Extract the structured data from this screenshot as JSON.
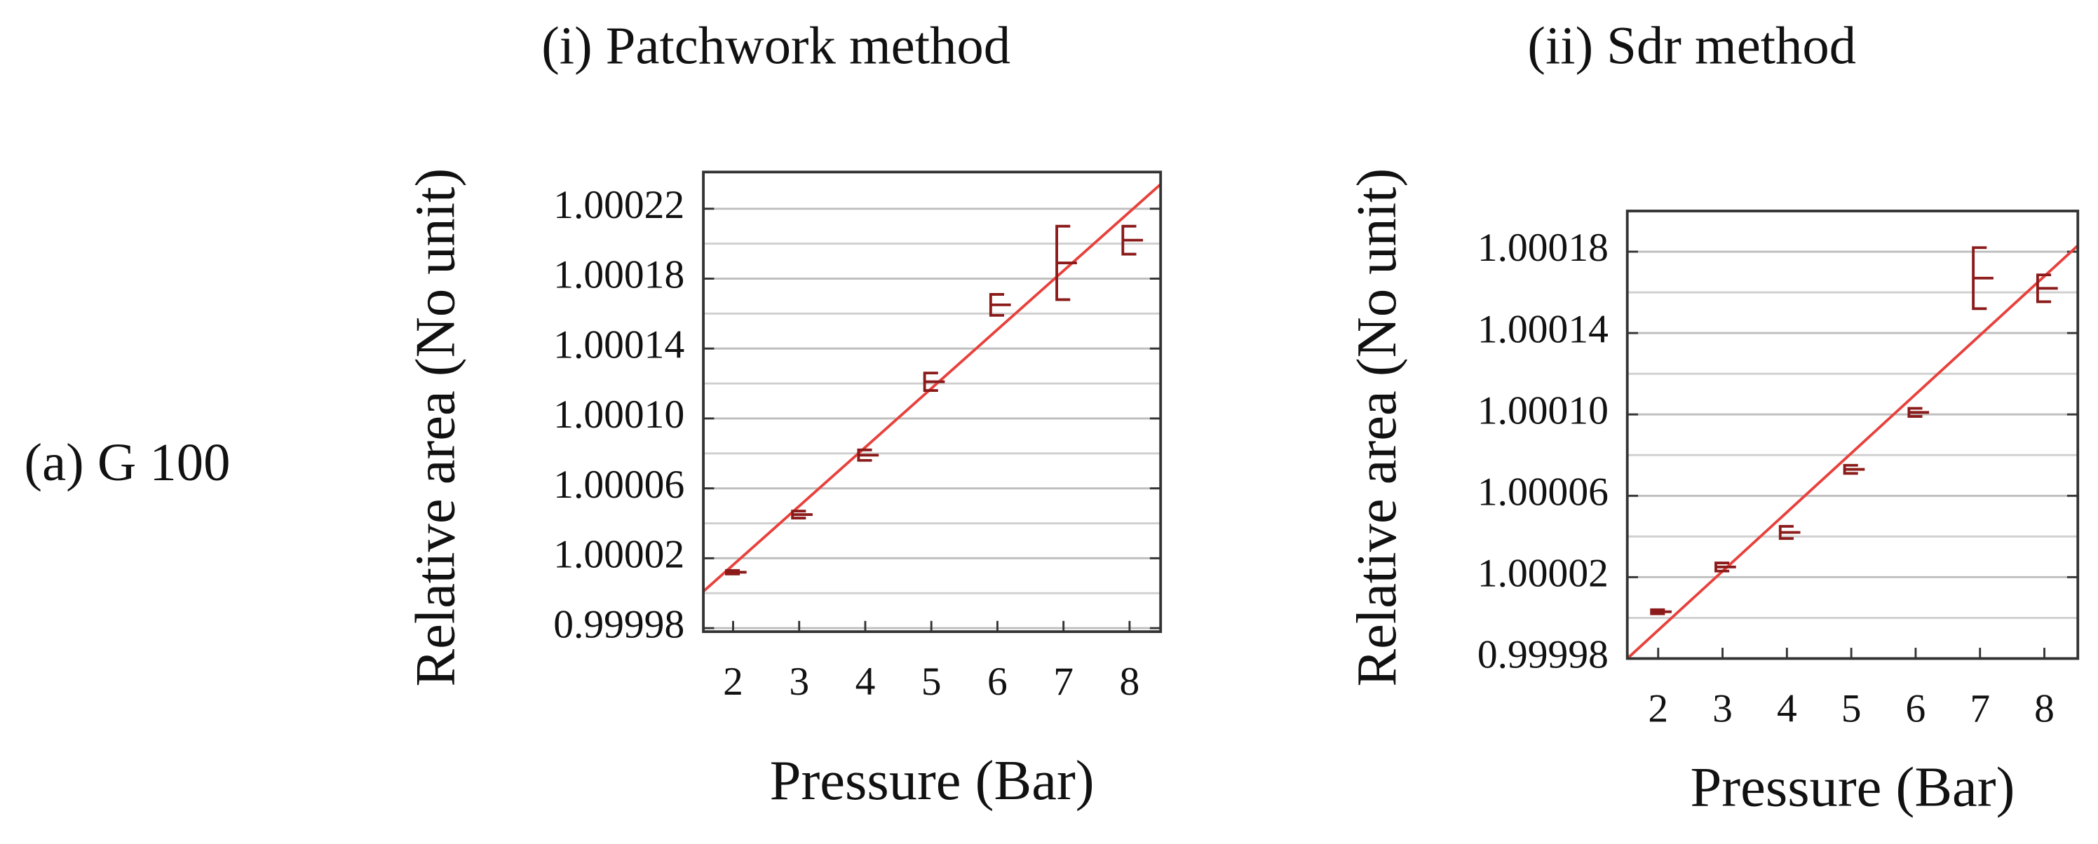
{
  "panel_label": "(a) G 100",
  "chart_data": [
    {
      "type": "errorbar",
      "title": "(i) Patchwork method",
      "x_label": "Pressure (Bar)",
      "y_label": "Relative area (No unit)",
      "x": [
        2,
        3,
        4,
        5,
        6,
        7,
        8
      ],
      "series": [
        {
          "color": "#8b1a1a",
          "values": [
            1.000012,
            1.000045,
            1.000079,
            1.000121,
            1.000165,
            1.000189,
            1.000202
          ],
          "errors": [
            1e-06,
            2e-06,
            3e-06,
            5e-06,
            6e-06,
            2.1e-05,
            8e-06
          ]
        }
      ],
      "fit": {
        "color": "#e8413c",
        "x": [
          1.55,
          8.47
        ],
        "y": [
          1.000001,
          1.000234
        ]
      },
      "xlim": [
        1.55,
        8.47
      ],
      "ylim": [
        0.999978,
        1.000241
      ],
      "xticks": [
        2,
        3,
        4,
        5,
        6,
        7,
        8
      ],
      "yticks": [
        0.99998,
        1.00002,
        1.00006,
        {
          "value": 1.0001,
          "label": "1.00010"
        },
        1.00014,
        1.00018,
        1.00022
      ],
      "minor_yticks": [
        1.0,
        1.00004,
        1.00008,
        1.00012,
        1.00016,
        1.0002
      ],
      "grid": true
    },
    {
      "type": "errorbar",
      "title": "(ii) Sdr method",
      "x_label": "Pressure (Bar)",
      "y_label": "Relative area (No unit)",
      "x": [
        2,
        3,
        4,
        5,
        6,
        7,
        8
      ],
      "series": [
        {
          "color": "#8b1a1a",
          "values": [
            1.000003,
            1.000025,
            1.000042,
            1.000073,
            1.000101,
            1.000167,
            1.000162
          ],
          "errors": [
            1e-06,
            2e-06,
            3e-06,
            2e-06,
            2e-06,
            1.5e-05,
            6.6e-06
          ]
        }
      ],
      "fit": {
        "color": "#e8413c",
        "x": [
          1.52,
          8.52
        ],
        "y": [
          0.99998,
          1.000183
        ]
      },
      "xlim": [
        1.52,
        8.52
      ],
      "ylim": [
        0.99998,
        1.0002
      ],
      "xticks": [
        2,
        3,
        4,
        5,
        6,
        7,
        8
      ],
      "yticks": [
        0.99998,
        1.00002,
        1.00006,
        {
          "value": 1.0001,
          "label": "1.00010"
        },
        1.00014,
        1.00018
      ],
      "minor_yticks": [
        1.0,
        1.00004,
        1.00008,
        1.00012,
        1.00016
      ],
      "grid": true
    }
  ]
}
